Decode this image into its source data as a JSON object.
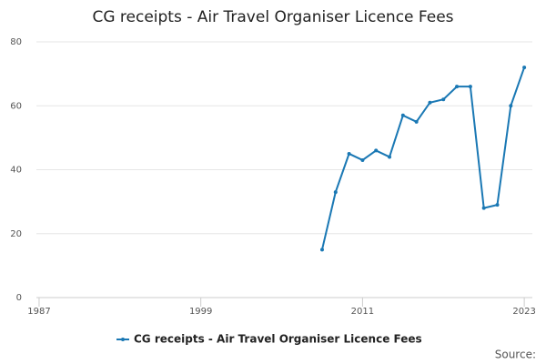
{
  "chart_data": {
    "type": "line",
    "title": "CG receipts - Air Travel Organiser Licence Fees",
    "x": [
      2008,
      2009,
      2010,
      2011,
      2012,
      2013,
      2014,
      2015,
      2016,
      2017,
      2018,
      2019,
      2020,
      2021,
      2022,
      2023
    ],
    "series": [
      {
        "name": "CG receipts - Air Travel Organiser Licence Fees",
        "color": "#1a78b4",
        "values": [
          15,
          33,
          45,
          43,
          46,
          44,
          57,
          55,
          61,
          62,
          66,
          66,
          28,
          29,
          60,
          72
        ]
      }
    ],
    "xlim": [
      1986.8,
      2023.6
    ],
    "xticks": [
      1987,
      1999,
      2011,
      2023
    ],
    "ylim": [
      0,
      80
    ],
    "yticks": [
      0,
      20,
      40,
      60,
      80
    ],
    "grid": true,
    "source": "Source:"
  }
}
